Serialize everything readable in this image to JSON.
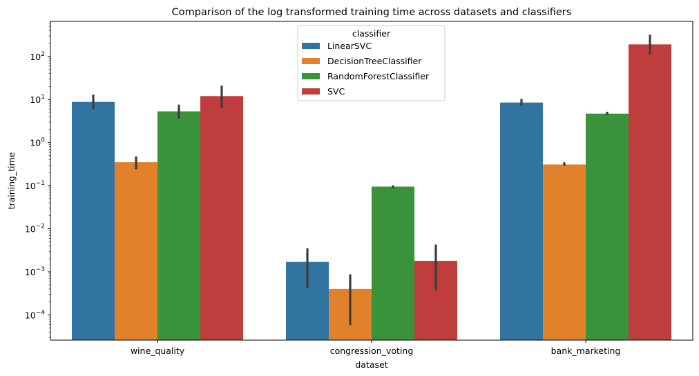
{
  "chart_data": {
    "type": "bar",
    "title": "Comparison of the log transformed training time across datasets and classifiers",
    "xlabel": "dataset",
    "ylabel": "training_time",
    "yscale": "log",
    "ylim": [
      2.6e-05,
      650
    ],
    "categories": [
      "wine_quality",
      "congression_voting",
      "bank_marketing"
    ],
    "y_ticks": [
      {
        "value": 0.0001,
        "base": "10",
        "exp": "−4"
      },
      {
        "value": 0.001,
        "base": "10",
        "exp": "−3"
      },
      {
        "value": 0.01,
        "base": "10",
        "exp": "−2"
      },
      {
        "value": 0.1,
        "base": "10",
        "exp": "−1"
      },
      {
        "value": 1,
        "base": "10",
        "exp": "0"
      },
      {
        "value": 10,
        "base": "10",
        "exp": "1"
      },
      {
        "value": 100,
        "base": "10",
        "exp": "2"
      }
    ],
    "legend": {
      "title": "classifier",
      "position": "top-center"
    },
    "grid": false,
    "series": [
      {
        "name": "LinearSVC",
        "color": "#3274a1",
        "values": [
          8.8,
          0.0017,
          8.5
        ],
        "ci": [
          [
            6.0,
            13.0
          ],
          [
            0.00042,
            0.0035
          ],
          [
            7.2,
            10.3
          ]
        ]
      },
      {
        "name": "DecisionTreeClassifier",
        "color": "#e1812c",
        "values": [
          0.35,
          0.0004,
          0.31
        ],
        "ci": [
          [
            0.24,
            0.48
          ],
          [
            5.8e-05,
            0.00088
          ],
          [
            0.29,
            0.35
          ]
        ]
      },
      {
        "name": "RandomForestClassifier",
        "color": "#3a923a",
        "values": [
          5.3,
          0.095,
          4.7
        ],
        "ci": [
          [
            3.6,
            7.6
          ],
          [
            0.088,
            0.102
          ],
          [
            4.4,
            5.2
          ]
        ]
      },
      {
        "name": "SVC",
        "color": "#c03d3e",
        "values": [
          12.0,
          0.0018,
          190
        ],
        "ci": [
          [
            6.2,
            21.0
          ],
          [
            0.00037,
            0.0043
          ],
          [
            110,
            320
          ]
        ]
      }
    ]
  }
}
